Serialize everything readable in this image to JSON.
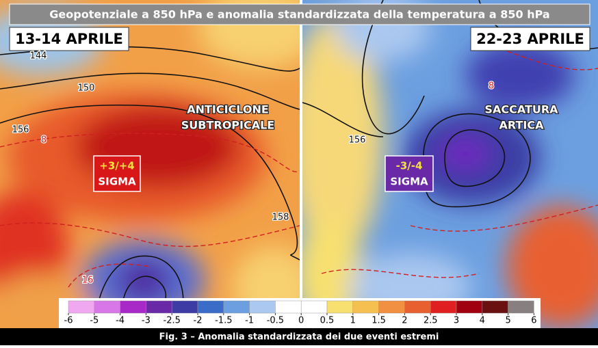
{
  "title": "Geopotenziale a 850 hPa e anomalia standardizzata della temperatura a 850 hPa",
  "panels": [
    {
      "date": "13-14 APRILE",
      "feature": [
        "ANTICICLONE",
        "SUBTROPICALE"
      ],
      "anomaly": {
        "value": "+3/+4",
        "unit": "SIGMA"
      },
      "contour_labels": [
        "144",
        "150",
        "156",
        "8",
        "16",
        "158"
      ]
    },
    {
      "date": "22-23 APRILE",
      "feature": [
        "SACCATURA",
        "ARTICA"
      ],
      "anomaly": {
        "value": "-3/-4",
        "unit": "SIGMA"
      },
      "contour_labels": [
        "156",
        "8"
      ]
    }
  ],
  "colorbar": {
    "ticks": [
      -6,
      -5,
      -4,
      -3,
      -2.5,
      -2,
      -1.5,
      -1,
      -0.5,
      0,
      0.5,
      1,
      1.5,
      2,
      2.5,
      3,
      4,
      5,
      6
    ],
    "colors": [
      "#f0a8f0",
      "#d878e8",
      "#a828c8",
      "#6a2aa8",
      "#3c3ca4",
      "#3a6cc8",
      "#6c9fe0",
      "#aac8f0",
      "#ffffff",
      "#ffffff",
      "#f8e070",
      "#f5c050",
      "#f09040",
      "#e86030",
      "#e02020",
      "#a00010",
      "#6a1010",
      "#888080"
    ]
  },
  "caption": "Fig. 3 – Anomalia standardizzata dei due eventi estremi"
}
